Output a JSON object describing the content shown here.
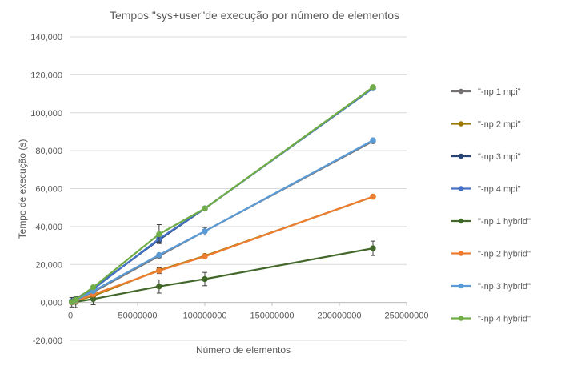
{
  "chart_data": {
    "type": "line",
    "title": "Tempos \"sys+user\"de execução por número  de elementos",
    "xlabel": "Número  de elementos",
    "ylabel": "Tempo  de execução (s)",
    "xlim": [
      0,
      250000000
    ],
    "ylim": [
      -20000,
      140000
    ],
    "x_ticks": [
      0,
      50000000,
      100000000,
      150000000,
      200000000,
      250000000
    ],
    "x_tick_labels": [
      "0",
      "50000000",
      "100000000",
      "150000000",
      "200000000",
      "250000000"
    ],
    "y_ticks": [
      -20000,
      0,
      20000,
      40000,
      60000,
      80000,
      100000,
      120000,
      140000
    ],
    "y_tick_labels": [
      "-20,000",
      "0,000",
      "20,000",
      "40,000",
      "60,000",
      "80,000",
      "100,000",
      "120,000",
      "140,000"
    ],
    "grid": true,
    "legend_position": "right",
    "series": [
      {
        "name": "\"-np 1 mpi\"",
        "color": "#767171",
        "points": [
          [
            1000000,
            500
          ],
          [
            4000000,
            1500
          ],
          [
            17000000,
            5500
          ],
          [
            66000000,
            24500
          ],
          [
            100000000,
            37500
          ],
          [
            225000000,
            85000
          ]
        ],
        "error": [
          0,
          0,
          0,
          0,
          0,
          0
        ]
      },
      {
        "name": "\"-np 2 mpi\"",
        "color": "#9C7A00",
        "points": [
          [
            1000000,
            200
          ],
          [
            4000000,
            800
          ],
          [
            17000000,
            3500
          ],
          [
            66000000,
            17000
          ],
          [
            100000000,
            24500
          ],
          [
            225000000,
            55700
          ]
        ],
        "error": [
          0,
          0,
          0,
          0,
          0,
          0
        ]
      },
      {
        "name": "\"-np 3 mpi\"",
        "color": "#264478",
        "points": [
          [
            1000000,
            700
          ],
          [
            4000000,
            2000
          ],
          [
            17000000,
            7500
          ],
          [
            66000000,
            33000
          ],
          [
            100000000,
            49500
          ],
          [
            225000000,
            113000
          ]
        ],
        "error": [
          0,
          0,
          0,
          0,
          0,
          0
        ]
      },
      {
        "name": "\"-np 4 mpi\"",
        "color": "#4472C4",
        "points": [
          [
            1000000,
            600
          ],
          [
            4000000,
            1800
          ],
          [
            17000000,
            7000
          ],
          [
            66000000,
            33500
          ],
          [
            100000000,
            49500
          ],
          [
            225000000,
            113000
          ]
        ],
        "error": [
          0,
          0,
          1500,
          2000,
          0,
          0
        ]
      },
      {
        "name": "\"-np 1 hybrid\"",
        "color": "#43682B",
        "points": [
          [
            1000000,
            100
          ],
          [
            4000000,
            300
          ],
          [
            17000000,
            1800
          ],
          [
            66000000,
            8400
          ],
          [
            100000000,
            12300
          ],
          [
            225000000,
            28500
          ]
        ],
        "error": [
          2500,
          3000,
          3000,
          3500,
          3500,
          3800
        ]
      },
      {
        "name": "\"-np 2 hybrid\"",
        "color": "#ED7D31",
        "points": [
          [
            1000000,
            150
          ],
          [
            4000000,
            800
          ],
          [
            17000000,
            4200
          ],
          [
            66000000,
            16700
          ],
          [
            100000000,
            24200
          ],
          [
            225000000,
            55800
          ]
        ],
        "error": [
          0,
          0,
          0,
          1500,
          0,
          0
        ]
      },
      {
        "name": "\"-np 3 hybrid\"",
        "color": "#5B9BD5",
        "points": [
          [
            1000000,
            250
          ],
          [
            4000000,
            1200
          ],
          [
            17000000,
            6000
          ],
          [
            66000000,
            25000
          ],
          [
            100000000,
            37500
          ],
          [
            225000000,
            85500
          ]
        ],
        "error": [
          0,
          0,
          0,
          0,
          2000,
          0
        ]
      },
      {
        "name": "\"-np 4 hybrid\"",
        "color": "#70AD47",
        "points": [
          [
            1000000,
            300
          ],
          [
            4000000,
            1500
          ],
          [
            17000000,
            8000
          ],
          [
            66000000,
            36000
          ],
          [
            100000000,
            49500
          ],
          [
            225000000,
            113500
          ]
        ],
        "error": [
          0,
          0,
          0,
          5000,
          0,
          0
        ]
      }
    ]
  }
}
